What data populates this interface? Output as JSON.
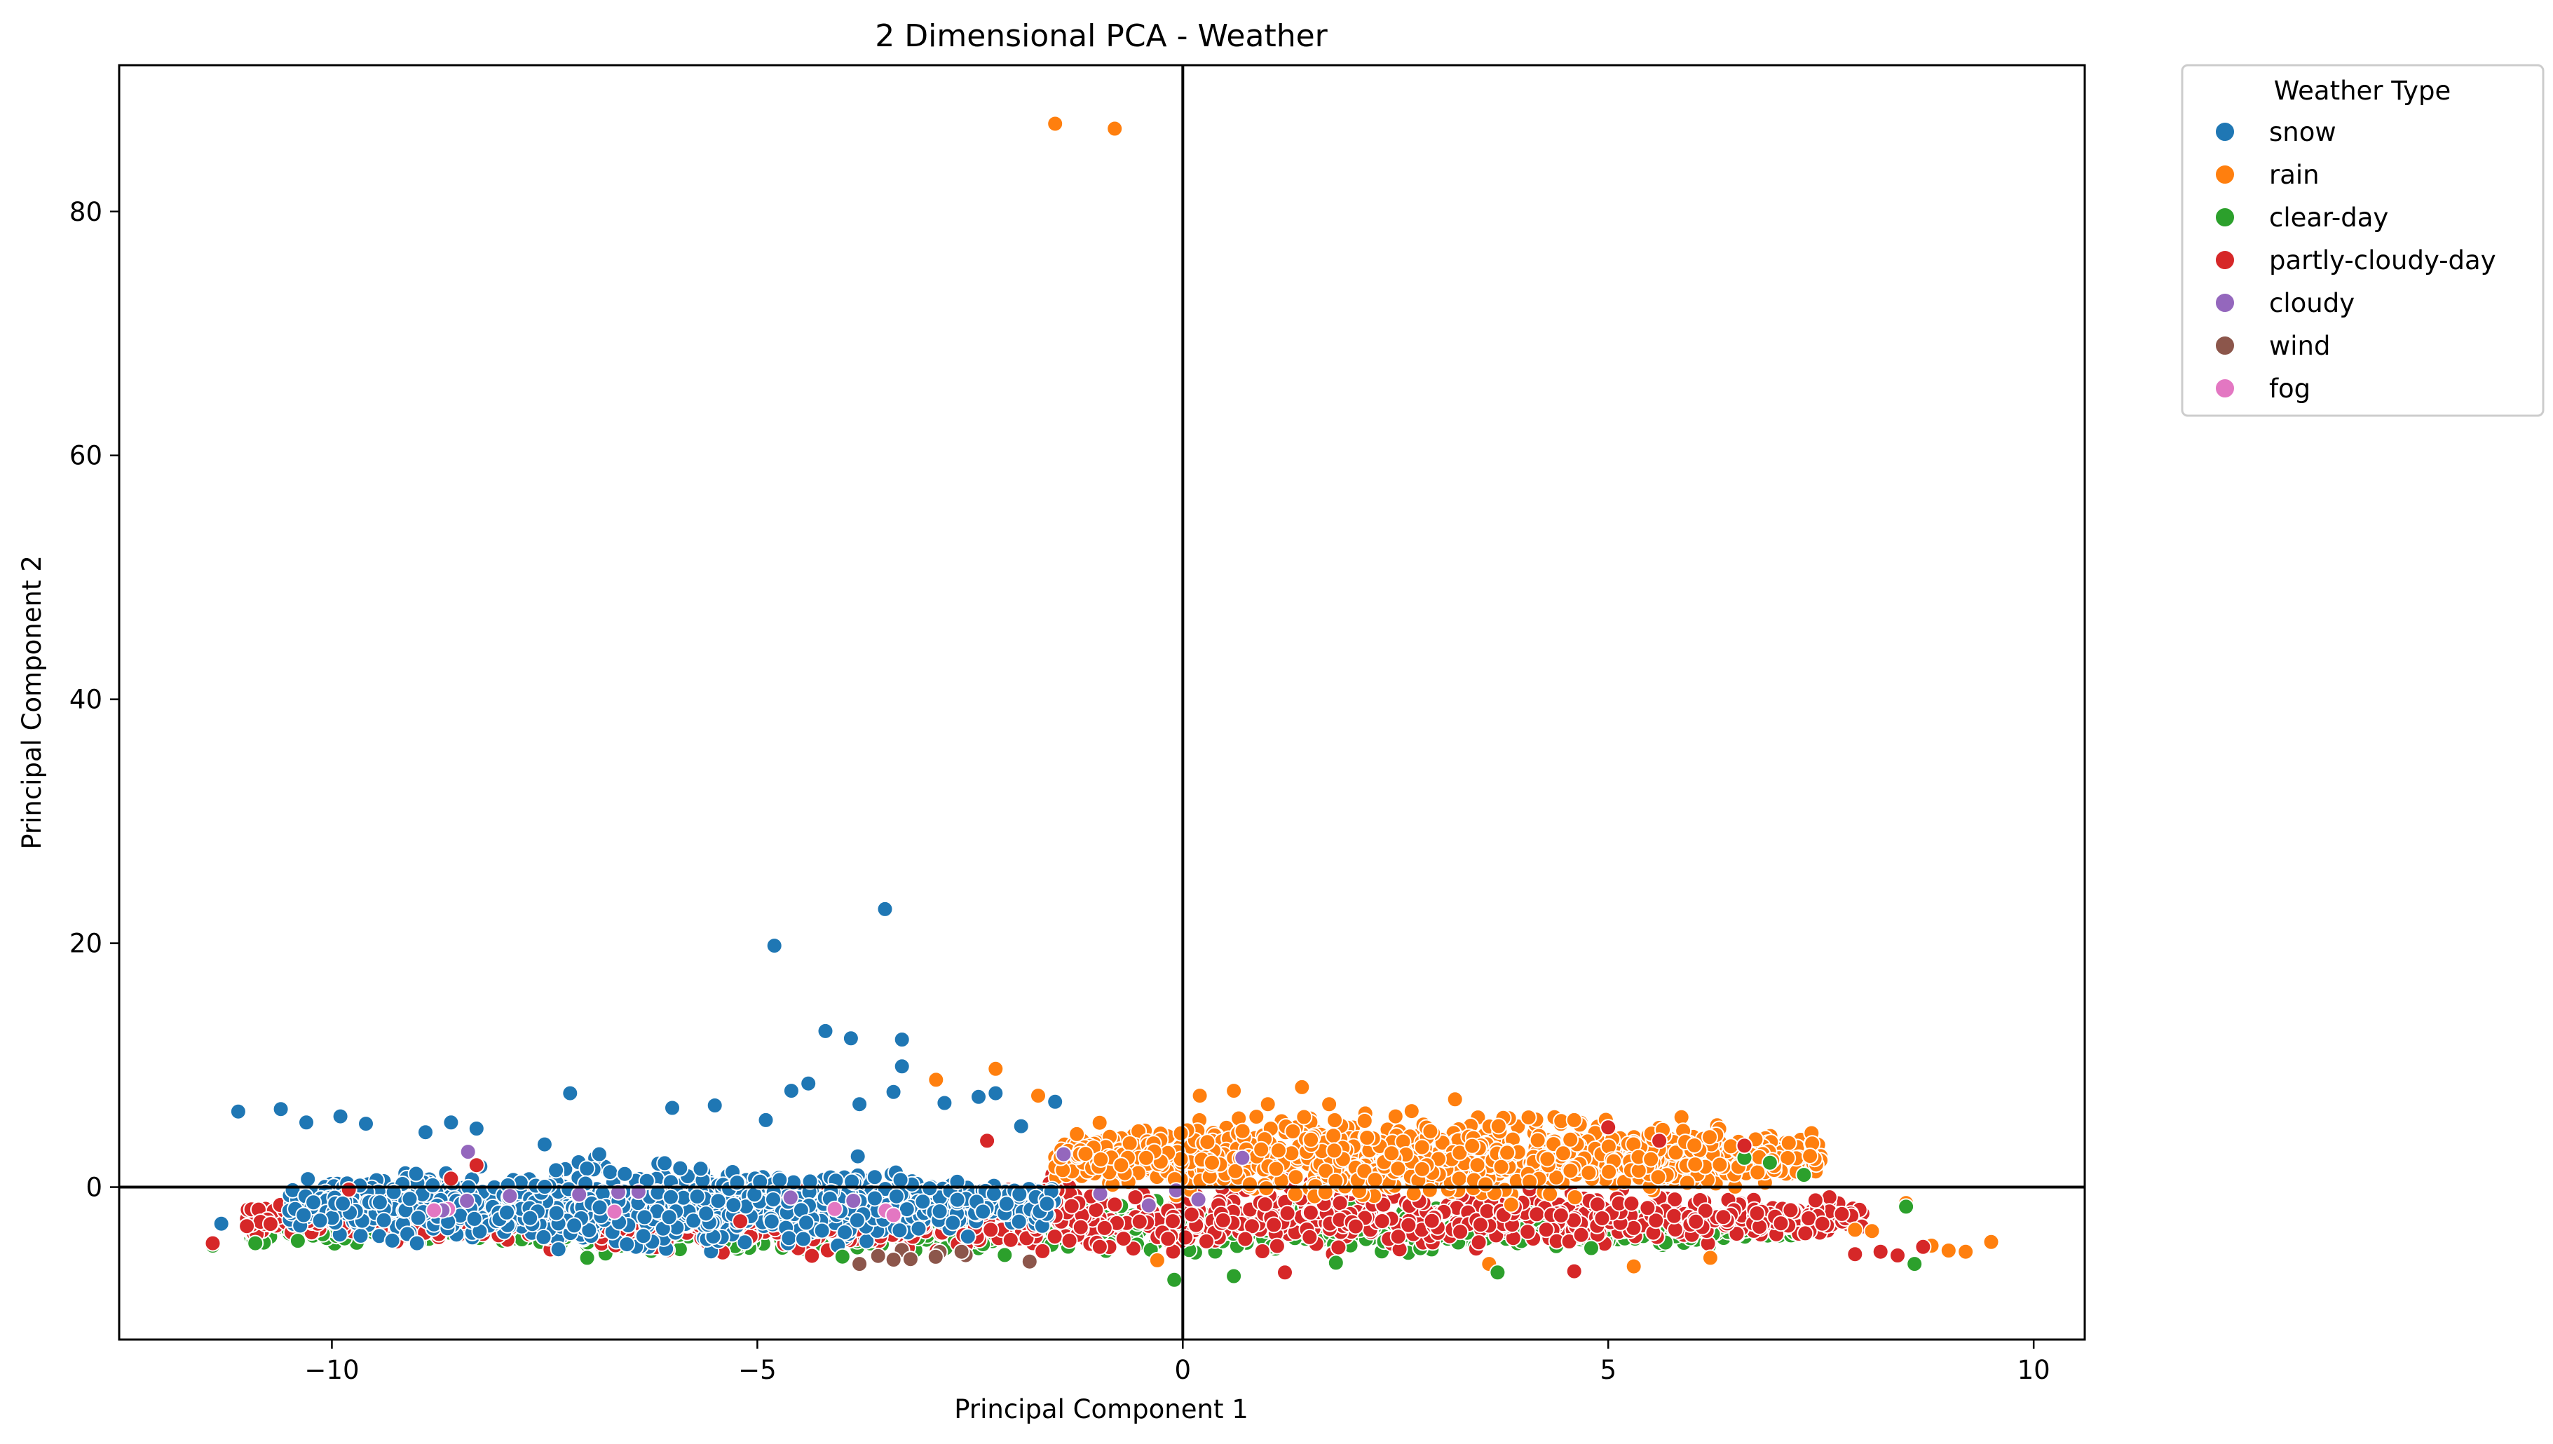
{
  "chart_data": {
    "type": "scatter",
    "title": "2 Dimensional PCA - Weather",
    "xlabel": "Principal Component 1",
    "ylabel": "Principal Component 2",
    "xlim": [
      -12.5,
      10.6
    ],
    "ylim": [
      -12.5,
      92
    ],
    "xticks": [
      -10,
      -5,
      0,
      5,
      10
    ],
    "xtick_labels": [
      "−10",
      "−5",
      "0",
      "5",
      "10"
    ],
    "yticks": [
      0,
      20,
      40,
      60,
      80
    ],
    "ytick_labels": [
      "0",
      "20",
      "40",
      "60",
      "80"
    ],
    "reference_lines": {
      "x": 0,
      "y": 0
    },
    "grid": false,
    "legend": {
      "title": "Weather Type",
      "placement": "outside-upper-right"
    },
    "series": [
      {
        "name": "snow",
        "color": "#1f77b4",
        "cluster": {
          "x_range": [
            -10.5,
            -1.5
          ],
          "y_center": -1.5,
          "y_spread": 3.0
        },
        "points": [
          [
            -11.1,
            6.2
          ],
          [
            -10.6,
            6.4
          ],
          [
            -10.3,
            5.3
          ],
          [
            -9.9,
            5.8
          ],
          [
            -9.6,
            5.2
          ],
          [
            -8.9,
            4.5
          ],
          [
            -8.6,
            5.3
          ],
          [
            -8.3,
            4.8
          ],
          [
            -7.2,
            7.7
          ],
          [
            -4.8,
            19.8
          ],
          [
            -3.5,
            22.8
          ],
          [
            -4.2,
            12.8
          ],
          [
            -3.9,
            12.2
          ],
          [
            -3.3,
            12.1
          ],
          [
            -3.3,
            9.9
          ],
          [
            -3.4,
            7.8
          ],
          [
            -4.4,
            8.5
          ],
          [
            -4.6,
            7.9
          ],
          [
            -2.8,
            6.9
          ],
          [
            -2.4,
            7.4
          ],
          [
            -11.3,
            -3.0
          ],
          [
            -9.0,
            -4.6
          ],
          [
            -7.5,
            3.5
          ],
          [
            -6.0,
            6.5
          ],
          [
            -5.5,
            6.7
          ],
          [
            -4.9,
            5.5
          ],
          [
            -3.8,
            6.8
          ],
          [
            -1.5,
            7.0
          ],
          [
            -1.9,
            5.0
          ],
          [
            -2.2,
            7.7
          ]
        ]
      },
      {
        "name": "rain",
        "color": "#ff7f0e",
        "cluster": {
          "x_range": [
            -1.5,
            7.5
          ],
          "y_center": 2.5,
          "y_spread": 3.0
        },
        "points": [
          [
            -1.5,
            87.2
          ],
          [
            -0.8,
            86.8
          ],
          [
            -2.9,
            8.8
          ],
          [
            -2.2,
            9.7
          ],
          [
            -1.7,
            7.5
          ],
          [
            0.2,
            7.5
          ],
          [
            1.4,
            8.2
          ],
          [
            3.2,
            7.2
          ],
          [
            4.6,
            5.5
          ],
          [
            7.9,
            -3.5
          ],
          [
            8.1,
            -3.6
          ],
          [
            8.5,
            -1.3
          ],
          [
            8.8,
            -4.8
          ],
          [
            9.0,
            -5.2
          ],
          [
            9.2,
            -5.3
          ],
          [
            9.5,
            -4.5
          ],
          [
            5.3,
            -6.5
          ],
          [
            6.2,
            -5.8
          ],
          [
            3.6,
            -6.3
          ],
          [
            -0.3,
            -6.0
          ],
          [
            1.0,
            6.8
          ],
          [
            2.5,
            5.8
          ],
          [
            0.6,
            7.9
          ]
        ]
      },
      {
        "name": "clear-day",
        "color": "#2ca02c",
        "cluster": {
          "x_range": [
            -11.0,
            7.2
          ],
          "y_center": -3.2,
          "y_spread": 2.0
        },
        "points": [
          [
            -11.4,
            -4.8
          ],
          [
            -10.9,
            -4.6
          ],
          [
            -10.4,
            -4.4
          ],
          [
            -7.0,
            -5.8
          ],
          [
            -0.1,
            -7.6
          ],
          [
            0.6,
            -7.3
          ],
          [
            3.7,
            -7.0
          ],
          [
            7.3,
            1.0
          ],
          [
            6.9,
            2.0
          ],
          [
            6.6,
            2.4
          ],
          [
            8.6,
            -6.3
          ],
          [
            8.5,
            -1.6
          ],
          [
            -4.0,
            -5.7
          ],
          [
            1.8,
            -6.2
          ],
          [
            4.8,
            -5.0
          ]
        ]
      },
      {
        "name": "partly-cloudy-day",
        "color": "#d62728",
        "cluster": {
          "x_range": [
            -11.0,
            8.0
          ],
          "y_center": -2.5,
          "y_spread": 2.5
        },
        "points": [
          [
            -11.4,
            -4.6
          ],
          [
            -11.0,
            -3.2
          ],
          [
            -9.8,
            -0.2
          ],
          [
            -8.6,
            0.7
          ],
          [
            -8.3,
            1.8
          ],
          [
            -2.3,
            3.8
          ],
          [
            5.0,
            4.9
          ],
          [
            5.6,
            3.8
          ],
          [
            6.6,
            3.4
          ],
          [
            8.2,
            -5.3
          ],
          [
            8.4,
            -5.6
          ],
          [
            8.7,
            -4.9
          ],
          [
            7.9,
            -5.5
          ],
          [
            4.6,
            -6.9
          ],
          [
            1.2,
            -7.0
          ],
          [
            -5.2,
            -2.8
          ]
        ]
      },
      {
        "name": "cloudy",
        "color": "#9467bd",
        "cluster": {
          "x_range": [
            -9.0,
            1.0
          ],
          "y_center": -1.0,
          "y_spread": 1.0
        },
        "points": [
          [
            -8.4,
            2.9
          ],
          [
            -8.7,
            -1.9
          ],
          [
            -1.4,
            2.7
          ],
          [
            0.7,
            2.4
          ],
          [
            -0.4,
            -1.5
          ]
        ]
      },
      {
        "name": "wind",
        "color": "#8c564b",
        "cluster": {
          "x_range": [
            -4.0,
            -2.0
          ],
          "y_center": -5.5,
          "y_spread": 0.5
        },
        "points": [
          [
            -3.8,
            -6.3
          ],
          [
            -3.2,
            -5.9
          ],
          [
            -1.8,
            -6.1
          ],
          [
            -2.6,
            -5.3
          ]
        ]
      },
      {
        "name": "fog",
        "color": "#e377c2",
        "cluster": {
          "x_range": [
            -9.0,
            -3.0
          ],
          "y_center": -2.0,
          "y_spread": 0.5
        },
        "points": [
          [
            -8.8,
            -1.9
          ],
          [
            -3.4,
            -2.3
          ]
        ]
      }
    ]
  }
}
